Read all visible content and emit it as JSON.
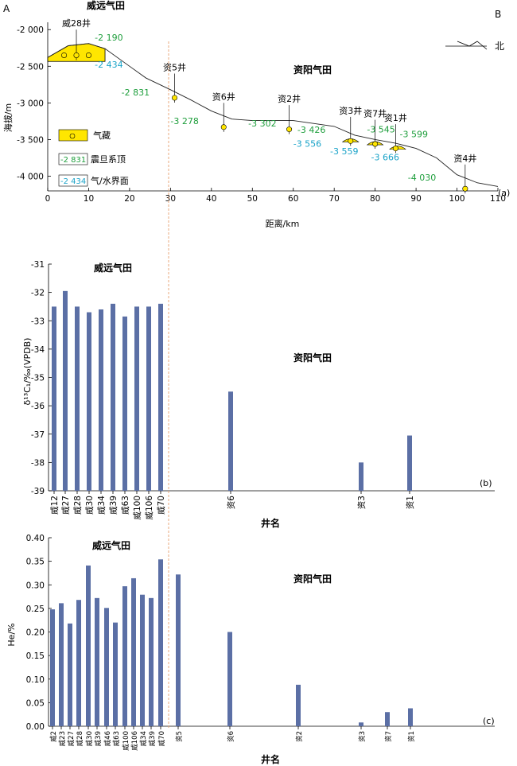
{
  "panel_a": {
    "corner_left": "A",
    "corner_right": "B",
    "weiyuan_title": "威远气田",
    "ziyang_title": "资阳气田",
    "north_label": "北",
    "ylabel": "海拔/m",
    "xlabel": "距离/km",
    "tag": "(a)",
    "legend": {
      "gas": "气藏",
      "sinian": "震旦系顶",
      "sinian_val": "-2 831",
      "gwc": "气/水界面",
      "gwc_val": "-2 434"
    },
    "colors": {
      "sinian": "#1e9e3c",
      "gwc": "#1aa3c8",
      "gas": "#ffe600",
      "divider": "#e8a070",
      "bar": "#5b6fa5"
    }
  },
  "chart_data": [
    {
      "type": "line",
      "title": "",
      "xlabel": "距离/km",
      "ylabel": "海拔/m",
      "xlim": [
        0,
        110
      ],
      "ylim": [
        -4200,
        -1900
      ],
      "xticks": [
        "0",
        "10",
        "20",
        "30",
        "40",
        "50",
        "60",
        "70",
        "80",
        "90",
        "100",
        "110"
      ],
      "yticks": [
        "-2 000",
        "-2 500",
        "-3 000",
        "-3 500",
        "-4 000"
      ],
      "profile": {
        "x": [
          0,
          5,
          10,
          14,
          20,
          24,
          30,
          35,
          40,
          45,
          50,
          60,
          70,
          75,
          80,
          85,
          90,
          95,
          100,
          105,
          110
        ],
        "y": [
          -2380,
          -2220,
          -2190,
          -2260,
          -2500,
          -2660,
          -2820,
          -2960,
          -3110,
          -3220,
          -3240,
          -3240,
          -3320,
          -3440,
          -3500,
          -3550,
          -3620,
          -3750,
          -3980,
          -4090,
          -4140
        ]
      },
      "wells": [
        {
          "name": "威28井",
          "x": 7,
          "y": -2350
        },
        {
          "name": "资5井",
          "x": 31,
          "y": -2930
        },
        {
          "name": "资6井",
          "x": 43,
          "y": -3330
        },
        {
          "name": "资2井",
          "x": 59,
          "y": -3360
        },
        {
          "name": "资3井",
          "x": 74,
          "y": -3520
        },
        {
          "name": "资7井",
          "x": 80,
          "y": -3560
        },
        {
          "name": "资1井",
          "x": 85,
          "y": -3620
        },
        {
          "name": "资4井",
          "x": 102,
          "y": -4170
        }
      ],
      "annotations_sinian": [
        {
          "text": "-2 190",
          "x": 11.5,
          "y": -2150
        },
        {
          "text": "-2 831",
          "x": 18,
          "y": -2900
        },
        {
          "text": "-3 278",
          "x": 30,
          "y": -3290
        },
        {
          "text": "-3 302",
          "x": 49,
          "y": -3320
        },
        {
          "text": "-3 426",
          "x": 61,
          "y": -3410
        },
        {
          "text": "-3 545",
          "x": 78,
          "y": -3400
        },
        {
          "text": "-3 599",
          "x": 86,
          "y": -3470
        }
      ],
      "annotations_gwc": [
        {
          "text": "-2 434",
          "x": 11.5,
          "y": -2520
        },
        {
          "text": "-3 556",
          "x": 60,
          "y": -3600
        },
        {
          "text": "-3 559",
          "x": 69,
          "y": -3700
        },
        {
          "text": "-3 666",
          "x": 79,
          "y": -3780
        }
      ],
      "annotation_deep": {
        "text": "-4 030",
        "x": 88,
        "y": -4060
      }
    },
    {
      "type": "bar",
      "title": "",
      "xlabel": "井名",
      "ylabel": "δ¹³C₁/‰(VPDB)",
      "ylim": [
        -39,
        -31
      ],
      "yticks": [
        "-31",
        "-32",
        "-33",
        "-34",
        "-35",
        "-36",
        "-37",
        "-38",
        "-39"
      ],
      "field_labels": [
        "威远气田",
        "资阳气田"
      ],
      "tag": "(b)",
      "categories": [
        "威12",
        "威27",
        "威28",
        "威30",
        "威34",
        "威39",
        "威63",
        "威100",
        "威106",
        "威70",
        "资6",
        "资3",
        "资1"
      ],
      "values": [
        -32.5,
        -31.95,
        -32.5,
        -32.7,
        -32.6,
        -32.4,
        -32.85,
        -32.5,
        -32.5,
        -32.4,
        -35.5,
        -38.0,
        -37.05
      ]
    },
    {
      "type": "bar",
      "title": "",
      "xlabel": "井名",
      "ylabel": "He/%",
      "ylim": [
        0,
        0.4
      ],
      "yticks": [
        "0.40",
        "0.35",
        "0.30",
        "0.25",
        "0.20",
        "0.15",
        "0.10",
        "0.05",
        "0.00"
      ],
      "field_labels": [
        "威远气田",
        "资阳气田"
      ],
      "tag": "(c)",
      "categories": [
        "威2",
        "威23",
        "威27",
        "威28",
        "威30",
        "威39",
        "威46",
        "威63",
        "威100",
        "威106",
        "威34",
        "威39",
        "威70",
        "资5",
        "资6",
        "资2",
        "资3",
        "资7",
        "资1"
      ],
      "values": [
        0.248,
        0.261,
        0.218,
        0.268,
        0.341,
        0.272,
        0.251,
        0.22,
        0.297,
        0.314,
        0.279,
        0.272,
        0.354,
        0.322,
        0.2,
        0.088,
        0.008,
        0.03,
        0.038
      ]
    }
  ]
}
